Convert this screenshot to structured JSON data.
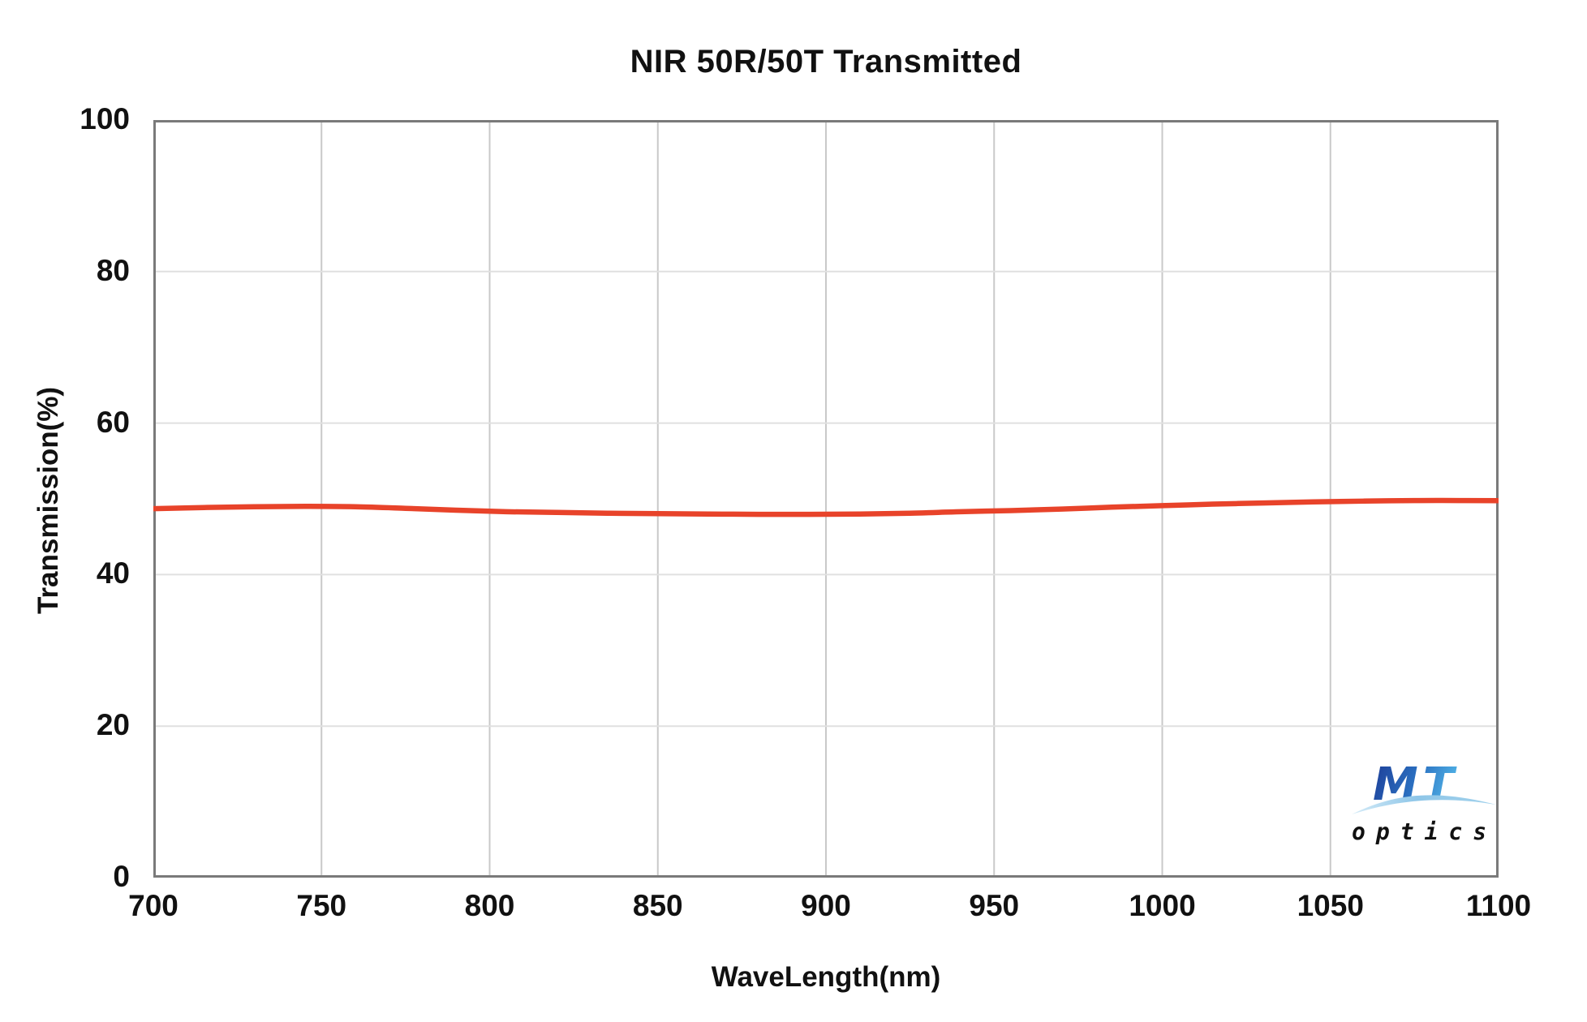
{
  "chart_data": {
    "type": "line",
    "title": "NIR 50R/50T Transmitted",
    "xlabel": "WaveLength(nm)",
    "ylabel": "Transmission(%)",
    "xlim": [
      700,
      1100
    ],
    "ylim": [
      0,
      100
    ],
    "xticks": [
      700,
      750,
      800,
      850,
      900,
      950,
      1000,
      1050,
      1100
    ],
    "yticks": [
      0,
      20,
      40,
      60,
      80,
      100
    ],
    "grid": true,
    "legend_position": "none",
    "series": [
      {
        "name": "Transmitted",
        "color": "#e8432a",
        "x": [
          700,
          715,
          730,
          745,
          760,
          775,
          790,
          805,
          820,
          835,
          850,
          865,
          880,
          895,
          910,
          925,
          940,
          955,
          970,
          985,
          1000,
          1015,
          1030,
          1045,
          1060,
          1075,
          1090,
          1100
        ],
        "y": [
          48.7,
          48.85,
          48.95,
          49.0,
          48.95,
          48.75,
          48.5,
          48.3,
          48.2,
          48.1,
          48.05,
          48.0,
          47.95,
          47.95,
          48.0,
          48.1,
          48.3,
          48.45,
          48.65,
          48.9,
          49.1,
          49.3,
          49.45,
          49.6,
          49.7,
          49.78,
          49.78,
          49.75
        ]
      }
    ]
  },
  "colors": {
    "line": "#e8432a",
    "grid_vertical": "#c9c9c9",
    "grid_horizontal": "#e0e0e0",
    "plot_border": "#7a7a7a",
    "text": "#111111",
    "logo_blue_dark": "#1d3c96",
    "logo_blue_light": "#4fb0e5",
    "logo_swoosh": "#8ec6e8"
  },
  "logo": {
    "letters": "MT",
    "subtext": "optics"
  }
}
